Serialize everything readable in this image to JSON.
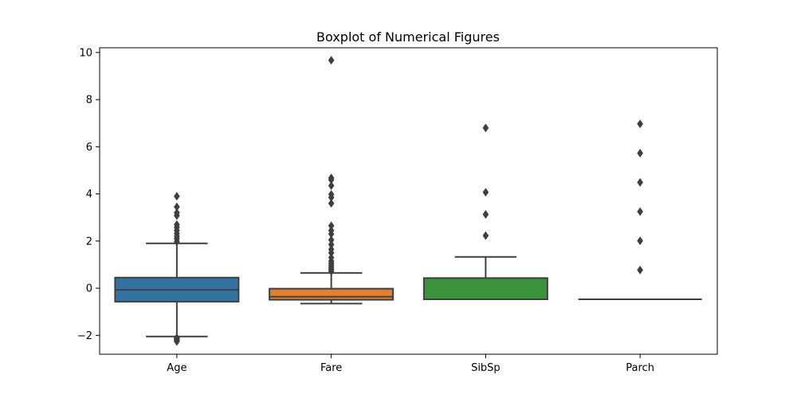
{
  "chart_data": {
    "type": "box",
    "title": "Boxplot of Numerical Figures",
    "xlabel": "",
    "ylabel": "",
    "ylim": [
      -2.8,
      10.2
    ],
    "yticks": [
      -2,
      0,
      2,
      4,
      6,
      8,
      10
    ],
    "categories": [
      "Age",
      "Fare",
      "SibSp",
      "Parch"
    ],
    "boxes": [
      {
        "name": "Age",
        "color": "#3274a1",
        "whisker_low": -2.05,
        "q1": -0.57,
        "median": -0.07,
        "q3": 0.45,
        "whisker_high": 1.9,
        "fliers": [
          -2.1,
          -2.14,
          -2.18,
          -2.22,
          -2.26,
          1.98,
          2.1,
          2.2,
          2.32,
          2.45,
          2.58,
          2.7,
          3.08,
          3.2,
          3.45,
          3.9
        ]
      },
      {
        "name": "Fare",
        "color": "#e1812c",
        "whisker_low": -0.65,
        "q1": -0.49,
        "median": -0.36,
        "q3": -0.02,
        "whisker_high": 0.65,
        "fliers": [
          0.72,
          0.8,
          0.88,
          0.96,
          1.05,
          1.15,
          1.3,
          1.5,
          1.65,
          1.85,
          2.05,
          2.3,
          2.45,
          2.65,
          3.6,
          3.85,
          3.98,
          4.35,
          4.6,
          4.68,
          9.67
        ]
      },
      {
        "name": "SibSp",
        "color": "#3a923a",
        "whisker_low": -0.47,
        "q1": -0.47,
        "median": -0.47,
        "q3": 0.43,
        "whisker_high": 1.33,
        "fliers": [
          2.23,
          3.13,
          4.07,
          6.8
        ]
      },
      {
        "name": "Parch",
        "color": "#c03d3e",
        "whisker_low": -0.47,
        "q1": -0.47,
        "median": -0.47,
        "q3": -0.47,
        "whisker_high": -0.47,
        "fliers": [
          0.77,
          2.01,
          3.25,
          4.49,
          5.73,
          6.97
        ]
      }
    ],
    "grid": false,
    "legend": "none"
  }
}
